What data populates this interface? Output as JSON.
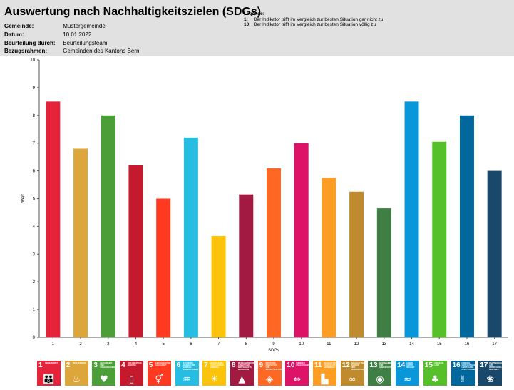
{
  "header": {
    "title": "Auswertung nach Nachhaltigkeitszielen (SDGs)",
    "meta": [
      {
        "key": "Gemeinde:",
        "value": "Mustergemeinde"
      },
      {
        "key": "Datum:",
        "value": "10.01.2022"
      },
      {
        "key": "Beurteilung durch:",
        "value": "Beurteilungsteam"
      },
      {
        "key": "Bezugsrahmen:",
        "value": "Gemeinden des Kantons Bern"
      }
    ],
    "legend": {
      "title": "Legende:",
      "items": [
        {
          "num": "1:",
          "text": "Der Indikator trifft im Vergleich zur besten Situation gar nicht zu"
        },
        {
          "num": "10:",
          "text": "Der Indikator trifft im Vergleich zur besten Situation völlig zu"
        }
      ]
    }
  },
  "chart_data": {
    "type": "bar",
    "categories": [
      "1",
      "2",
      "3",
      "4",
      "5",
      "6",
      "7",
      "8",
      "9",
      "10",
      "11",
      "12",
      "13",
      "14",
      "15",
      "16",
      "17"
    ],
    "values": [
      8.5,
      6.8,
      8.0,
      6.2,
      5.0,
      7.2,
      3.65,
      5.15,
      6.1,
      7.0,
      5.75,
      5.25,
      4.65,
      8.5,
      7.05,
      8.0,
      6.0
    ],
    "colors": [
      "#e5243b",
      "#dda63a",
      "#4c9f38",
      "#c5192d",
      "#ff3a21",
      "#26bde2",
      "#fcc30b",
      "#a21942",
      "#fd6925",
      "#dd1367",
      "#fd9d24",
      "#bf8b2e",
      "#3f7e44",
      "#0a97d9",
      "#56c02b",
      "#00689d",
      "#19486a"
    ],
    "title": "",
    "xlabel": "SDGs",
    "ylabel": "Wert",
    "ylim": [
      0,
      10
    ],
    "yticks": [
      "0",
      "1",
      "2",
      "3",
      "4",
      "5",
      "6",
      "7",
      "8",
      "9",
      "10"
    ],
    "grid": false,
    "legend": "none"
  },
  "sdg_tiles": [
    {
      "num": "1",
      "label": "Keine Armut",
      "icon": "family-icon",
      "glyph": "👪",
      "color": "#e5243b"
    },
    {
      "num": "2",
      "label": "Kein Hunger",
      "icon": "bowl-icon",
      "glyph": "♨",
      "color": "#dda63a"
    },
    {
      "num": "3",
      "label": "Gesundheit und Wohlergehen",
      "icon": "heartbeat-icon",
      "glyph": "♥",
      "color": "#4c9f38"
    },
    {
      "num": "4",
      "label": "Hochwertige Bildung",
      "icon": "book-icon",
      "glyph": "▯",
      "color": "#c5192d"
    },
    {
      "num": "5",
      "label": "Geschlechter-gleichheit",
      "icon": "gender-icon",
      "glyph": "⚥",
      "color": "#ff3a21"
    },
    {
      "num": "6",
      "label": "Sauberes Wasser und Sanitär-einrichtungen",
      "icon": "water-icon",
      "glyph": "♒",
      "color": "#26bde2"
    },
    {
      "num": "7",
      "label": "Bezahlbare und saubere Energie",
      "icon": "sun-icon",
      "glyph": "☀",
      "color": "#fcc30b"
    },
    {
      "num": "8",
      "label": "Menschenwürdige Arbeit und Wirtschafts-wachstum",
      "icon": "growth-chart-icon",
      "glyph": "▲",
      "color": "#a21942"
    },
    {
      "num": "9",
      "label": "Industrie, Innovation und Infrastruktur",
      "icon": "cubes-icon",
      "glyph": "◈",
      "color": "#fd6925"
    },
    {
      "num": "10",
      "label": "Weniger Ungleichheiten",
      "icon": "equality-icon",
      "glyph": "⇔",
      "color": "#dd1367"
    },
    {
      "num": "11",
      "label": "Nachhaltige Städte und Gemeinden",
      "icon": "city-icon",
      "glyph": "▙",
      "color": "#fd9d24"
    },
    {
      "num": "12",
      "label": "Nachhaltige/r Konsum und Produktion",
      "icon": "infinity-icon",
      "glyph": "∞",
      "color": "#bf8b2e"
    },
    {
      "num": "13",
      "label": "Massnahmen zum Klimaschutz",
      "icon": "eye-globe-icon",
      "glyph": "◉",
      "color": "#3f7e44"
    },
    {
      "num": "14",
      "label": "Leben unter Wasser",
      "icon": "fish-icon",
      "glyph": "≈",
      "color": "#0a97d9"
    },
    {
      "num": "15",
      "label": "Leben an Land",
      "icon": "tree-icon",
      "glyph": "♣",
      "color": "#56c02b"
    },
    {
      "num": "16",
      "label": "Frieden, Gerechtigkeit und starke Institutionen",
      "icon": "dove-icon",
      "glyph": "✌",
      "color": "#00689d"
    },
    {
      "num": "17",
      "label": "Partnerschaften zur Erreichung der Ziele",
      "icon": "flower-icon",
      "glyph": "❀",
      "color": "#19486a"
    }
  ]
}
